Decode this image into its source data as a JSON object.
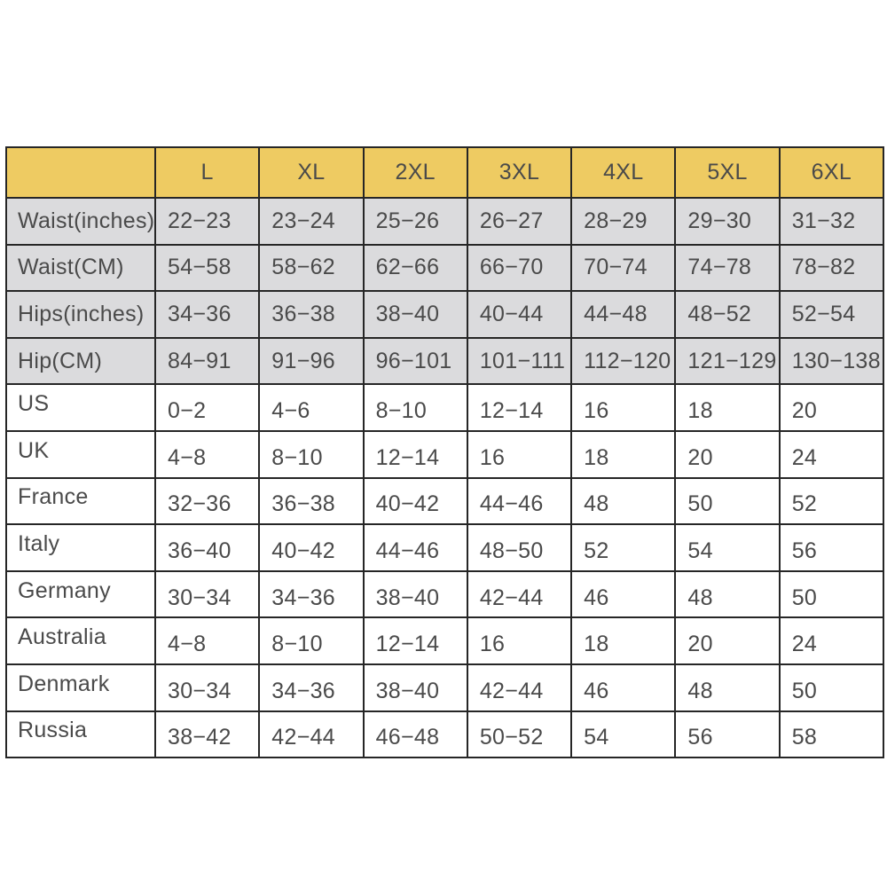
{
  "styles": {
    "page_bg": "#ffffff",
    "header_bg": "#eecb62",
    "measurement_row_bg": "#dbdbdd",
    "country_row_bg": "#ffffff",
    "border_color": "#262626",
    "text_color": "#4a4a4a"
  },
  "chart_data": {
    "type": "table",
    "corner_label": "",
    "columns": [
      "L",
      "XL",
      "2XL",
      "3XL",
      "4XL",
      "5XL",
      "6XL"
    ],
    "rows": [
      {
        "label": "Waist(inches)",
        "group": "measurement",
        "values": [
          "22−23",
          "23−24",
          "25−26",
          "26−27",
          "28−29",
          "29−30",
          "31−32"
        ]
      },
      {
        "label": "Waist(CM)",
        "group": "measurement",
        "values": [
          "54−58",
          "58−62",
          "62−66",
          "66−70",
          "70−74",
          "74−78",
          "78−82"
        ]
      },
      {
        "label": "Hips(inches)",
        "group": "measurement",
        "values": [
          "34−36",
          "36−38",
          "38−40",
          "40−44",
          "44−48",
          "48−52",
          "52−54"
        ]
      },
      {
        "label": "Hip(CM)",
        "group": "measurement",
        "values": [
          "84−91",
          "91−96",
          "96−101",
          "101−111",
          "112−120",
          "121−129",
          "130−138"
        ]
      },
      {
        "label": "US",
        "group": "country",
        "values": [
          "0−2",
          "4−6",
          "8−10",
          "12−14",
          "16",
          "18",
          "20"
        ]
      },
      {
        "label": "UK",
        "group": "country",
        "values": [
          "4−8",
          "8−10",
          "12−14",
          "16",
          "18",
          "20",
          "24"
        ]
      },
      {
        "label": "France",
        "group": "country",
        "values": [
          "32−36",
          "36−38",
          "40−42",
          "44−46",
          "48",
          "50",
          "52"
        ]
      },
      {
        "label": "Italy",
        "group": "country",
        "values": [
          "36−40",
          "40−42",
          "44−46",
          "48−50",
          "52",
          "54",
          "56"
        ]
      },
      {
        "label": "Germany",
        "group": "country",
        "values": [
          "30−34",
          "34−36",
          "38−40",
          "42−44",
          "46",
          "48",
          "50"
        ]
      },
      {
        "label": "Australia",
        "group": "country",
        "values": [
          "4−8",
          "8−10",
          "12−14",
          "16",
          "18",
          "20",
          "24"
        ]
      },
      {
        "label": "Denmark",
        "group": "country",
        "values": [
          "30−34",
          "34−36",
          "38−40",
          "42−44",
          "46",
          "48",
          "50"
        ]
      },
      {
        "label": "Russia",
        "group": "country",
        "values": [
          "38−42",
          "42−44",
          "46−48",
          "50−52",
          "54",
          "56",
          "58"
        ]
      }
    ]
  }
}
